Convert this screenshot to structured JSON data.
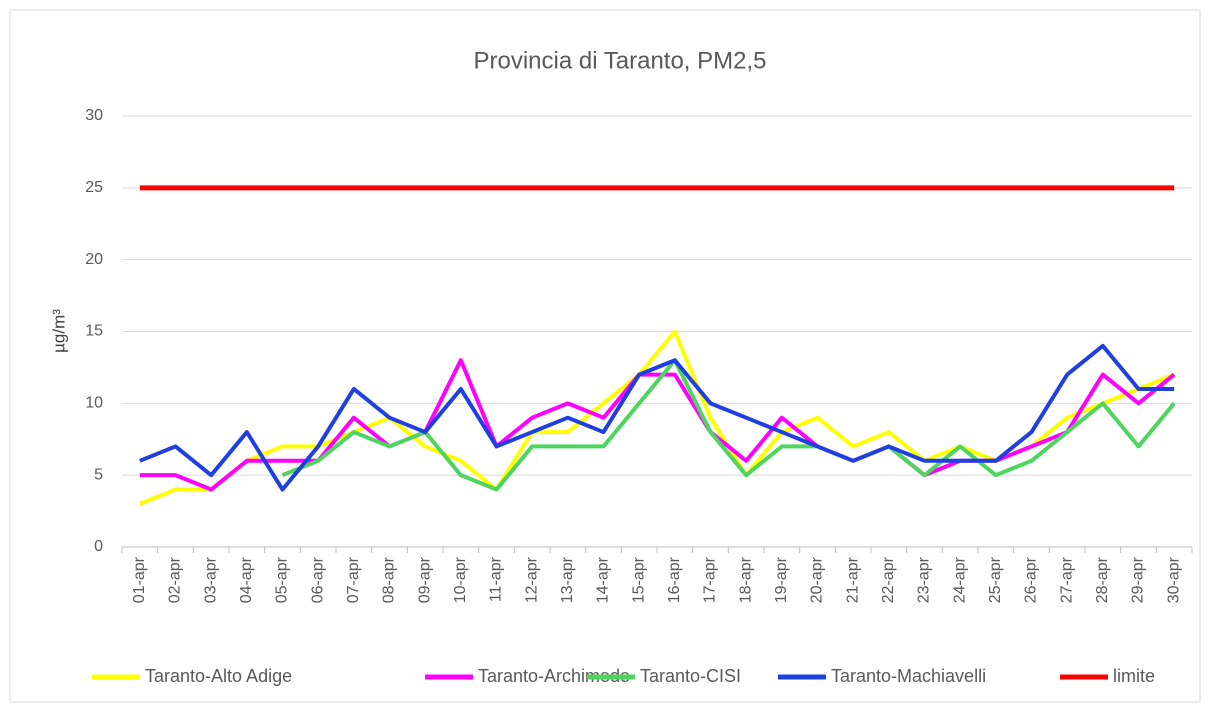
{
  "chart_data": {
    "type": "line",
    "title": "Provincia di Taranto, PM2,5",
    "y_label": "µg/m³",
    "categories": [
      "01-apr",
      "02-apr",
      "03-apr",
      "04-apr",
      "05-apr",
      "06-apr",
      "07-apr",
      "08-apr",
      "09-apr",
      "10-apr",
      "11-apr",
      "12-apr",
      "13-apr",
      "14-apr",
      "15-apr",
      "16-apr",
      "17-apr",
      "18-apr",
      "19-apr",
      "20-apr",
      "21-apr",
      "22-apr",
      "23-apr",
      "24-apr",
      "25-apr",
      "26-apr",
      "27-apr",
      "28-apr",
      "29-apr",
      "30-apr"
    ],
    "series": [
      {
        "name": "Taranto-Alto Adige",
        "color": "#ffff00",
        "values": [
          3,
          4,
          4,
          6,
          7,
          7,
          8,
          9,
          7,
          6,
          4,
          8,
          8,
          10,
          12,
          15,
          9,
          5,
          8,
          9,
          7,
          8,
          6,
          7,
          6,
          7,
          9,
          10,
          11,
          12
        ]
      },
      {
        "name": "Taranto-Archimede",
        "color": "#ff00ff",
        "values": [
          5,
          5,
          4,
          6,
          6,
          6,
          9,
          7,
          8,
          13,
          7,
          9,
          10,
          9,
          12,
          12,
          8,
          6,
          9,
          7,
          6,
          7,
          5,
          6,
          6,
          7,
          8,
          12,
          10,
          12
        ]
      },
      {
        "name": "Taranto-CISI",
        "color": "#4fd460",
        "values": [
          null,
          null,
          null,
          null,
          5,
          6,
          8,
          7,
          8,
          5,
          4,
          7,
          7,
          7,
          10,
          13,
          8,
          5,
          7,
          7,
          6,
          7,
          5,
          7,
          5,
          6,
          8,
          10,
          7,
          10
        ]
      },
      {
        "name": "Taranto-Machiavelli",
        "color": "#1f3fe0",
        "values": [
          6,
          7,
          5,
          8,
          4,
          7,
          11,
          9,
          8,
          11,
          7,
          8,
          9,
          8,
          12,
          13,
          10,
          9,
          8,
          7,
          6,
          7,
          6,
          6,
          6,
          8,
          12,
          14,
          11,
          11
        ]
      },
      {
        "name": "limite",
        "color": "#ff0000",
        "values": [
          25,
          25,
          25,
          25,
          25,
          25,
          25,
          25,
          25,
          25,
          25,
          25,
          25,
          25,
          25,
          25,
          25,
          25,
          25,
          25,
          25,
          25,
          25,
          25,
          25,
          25,
          25,
          25,
          25,
          25
        ]
      }
    ],
    "ylim": [
      0,
      30
    ],
    "yticks": [
      0,
      5,
      10,
      15,
      20,
      25,
      30
    ],
    "grid": true,
    "legend": "bottom"
  }
}
